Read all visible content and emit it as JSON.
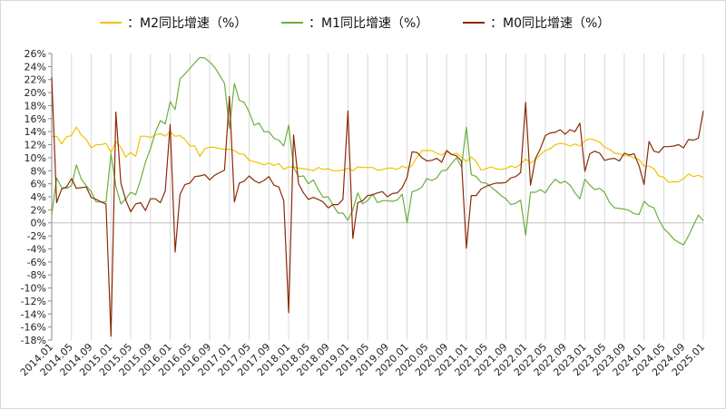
{
  "chart_data": {
    "type": "line",
    "title": "",
    "xlabel": "",
    "ylabel": "",
    "ylim": [
      -18,
      26
    ],
    "y_ticks": [
      26,
      24,
      22,
      20,
      18,
      16,
      14,
      12,
      10,
      8,
      6,
      4,
      2,
      0,
      -2,
      -4,
      -6,
      -8,
      -10,
      -12,
      -14,
      -16,
      -18
    ],
    "y_tick_labels": [
      "26%",
      "24%",
      "22%",
      "20%",
      "18%",
      "16%",
      "14%",
      "12%",
      "10%",
      "8%",
      "6%",
      "4%",
      "2%",
      "0%",
      "-2%",
      "-4%",
      "-6%",
      "-8%",
      "-10%",
      "-12%",
      "-14%",
      "-16%",
      "-18%"
    ],
    "x_start": "2014.01",
    "x_end": "2025.01",
    "x_tick_labels": [
      "2014.01",
      "2014.05",
      "2014.09",
      "2015.01",
      "2015.05",
      "2015.09",
      "2016.01",
      "2016.05",
      "2016.09",
      "2017.01",
      "2017.05",
      "2017.09",
      "2018.01",
      "2018.05",
      "2018.09",
      "2019.01",
      "2019.05",
      "2019.09",
      "2020.01",
      "2020.05",
      "2020.09",
      "2021.01",
      "2021.05",
      "2021.09",
      "2022.01",
      "2022.05",
      "2022.09",
      "2023.01",
      "2023.05",
      "2023.09",
      "2024.01",
      "2024.05",
      "2024.09",
      "2025.01"
    ],
    "grid": "vertical",
    "legend_position": "top",
    "series": [
      {
        "name": "M2同比增速（%）",
        "color": "#F2C200",
        "values": [
          13.2,
          13.3,
          12.1,
          13.2,
          13.4,
          14.7,
          13.5,
          12.8,
          11.5,
          12.0,
          12.0,
          12.2,
          10.8,
          12.5,
          11.6,
          10.1,
          10.8,
          10.2,
          13.3,
          13.3,
          13.1,
          13.5,
          13.7,
          13.3,
          14.0,
          13.3,
          13.4,
          12.8,
          11.8,
          11.8,
          10.2,
          11.4,
          11.6,
          11.6,
          11.4,
          11.3,
          11.3,
          11.1,
          10.6,
          10.5,
          9.6,
          9.4,
          9.2,
          8.9,
          9.2,
          8.8,
          9.1,
          8.2,
          8.6,
          8.6,
          8.4,
          8.3,
          8.2,
          8.0,
          8.5,
          8.2,
          8.3,
          8.0,
          8.0,
          8.1,
          8.4,
          8.0,
          8.6,
          8.5,
          8.5,
          8.5,
          8.1,
          8.2,
          8.4,
          8.4,
          8.2,
          8.7,
          8.4,
          8.8,
          10.1,
          11.1,
          11.1,
          11.1,
          10.7,
          10.4,
          10.9,
          10.5,
          10.7,
          10.1,
          9.4,
          10.1,
          9.4,
          8.1,
          8.3,
          8.6,
          8.3,
          8.2,
          8.3,
          8.7,
          8.5,
          9.0,
          9.8,
          9.2,
          9.7,
          10.5,
          11.1,
          11.4,
          12.0,
          12.2,
          12.1,
          11.8,
          12.1,
          11.8,
          12.6,
          12.9,
          12.7,
          12.4,
          11.6,
          11.3,
          10.7,
          10.6,
          10.3,
          10.3,
          10.0,
          9.7,
          8.7,
          8.7,
          8.3,
          7.2,
          7.0,
          6.2,
          6.3,
          6.3,
          6.8,
          7.5,
          7.1,
          7.3,
          7.0
        ],
        "values_end": "2025.01"
      },
      {
        "name": "M1同比增速（%）",
        "color": "#6AAF3D",
        "values": [
          1.2,
          6.9,
          5.4,
          5.3,
          5.7,
          8.9,
          6.7,
          5.7,
          4.8,
          3.2,
          3.2,
          3.2,
          10.6,
          5.6,
          2.9,
          3.7,
          4.7,
          4.3,
          6.6,
          9.3,
          11.4,
          13.9,
          15.7,
          15.2,
          18.6,
          17.4,
          22.1,
          22.9,
          23.7,
          24.6,
          25.4,
          25.3,
          24.7,
          23.9,
          22.7,
          21.4,
          14.5,
          21.4,
          18.8,
          18.5,
          17.0,
          15.0,
          15.3,
          14.0,
          14.0,
          13.0,
          12.7,
          11.8,
          15.0,
          8.5,
          7.1,
          7.2,
          6.0,
          6.6,
          5.1,
          3.9,
          4.0,
          2.7,
          1.5,
          1.5,
          0.4,
          2.0,
          4.6,
          2.9,
          3.4,
          4.4,
          3.1,
          3.4,
          3.4,
          3.3,
          3.5,
          4.4,
          0.0,
          4.8,
          5.0,
          5.5,
          6.8,
          6.5,
          6.9,
          8.0,
          8.1,
          9.1,
          10.0,
          8.6,
          14.7,
          7.4,
          7.1,
          6.2,
          6.1,
          5.5,
          4.9,
          4.2,
          3.7,
          2.8,
          3.0,
          3.5,
          -1.9,
          4.7,
          4.7,
          5.1,
          4.6,
          5.8,
          6.7,
          6.1,
          6.4,
          5.8,
          4.6,
          3.7,
          6.7,
          5.8,
          5.1,
          5.3,
          4.7,
          3.1,
          2.3,
          2.2,
          2.1,
          1.9,
          1.4,
          1.3,
          3.3,
          2.6,
          2.3,
          0.5,
          -0.9,
          -1.6,
          -2.5,
          -3.0,
          -3.4,
          -2.0,
          -0.4,
          1.2,
          0.3
        ],
        "values_end": "2025.01"
      },
      {
        "name": "M0同比增速（%）",
        "color": "#8B2A05",
        "values": [
          22.4,
          3.1,
          5.2,
          5.5,
          6.8,
          5.3,
          5.4,
          5.5,
          3.9,
          3.6,
          3.2,
          2.9,
          -17.4,
          17.0,
          6.1,
          3.5,
          1.7,
          2.9,
          3.1,
          1.9,
          3.7,
          3.7,
          3.1,
          4.9,
          15.1,
          -4.5,
          4.4,
          5.9,
          6.1,
          7.1,
          7.2,
          7.4,
          6.6,
          7.3,
          7.7,
          8.1,
          19.4,
          3.2,
          6.1,
          6.4,
          7.2,
          6.5,
          6.1,
          6.5,
          7.1,
          5.8,
          5.5,
          3.4,
          -13.8,
          13.5,
          6.0,
          4.6,
          3.6,
          3.9,
          3.6,
          3.2,
          2.3,
          2.8,
          2.8,
          3.6,
          17.2,
          -2.4,
          3.1,
          3.4,
          4.2,
          4.3,
          4.6,
          4.8,
          4.0,
          4.5,
          4.6,
          5.4,
          7.0,
          10.9,
          10.8,
          10.0,
          9.5,
          9.6,
          9.9,
          9.3,
          11.1,
          10.5,
          10.3,
          9.5,
          -3.9,
          4.2,
          4.2,
          5.2,
          5.6,
          5.9,
          6.1,
          6.1,
          6.2,
          6.9,
          7.1,
          7.7,
          18.5,
          5.8,
          9.9,
          11.4,
          13.4,
          13.8,
          13.9,
          14.3,
          13.6,
          14.3,
          14.0,
          15.3,
          7.9,
          10.6,
          11.0,
          10.7,
          9.6,
          9.8,
          9.9,
          9.5,
          10.7,
          10.4,
          10.6,
          8.7,
          5.9,
          12.5,
          11.0,
          10.8,
          11.7,
          11.7,
          11.8,
          12.0,
          11.5,
          12.8,
          12.7,
          13.0,
          17.2
        ],
        "values_end": "2025.01"
      }
    ]
  }
}
